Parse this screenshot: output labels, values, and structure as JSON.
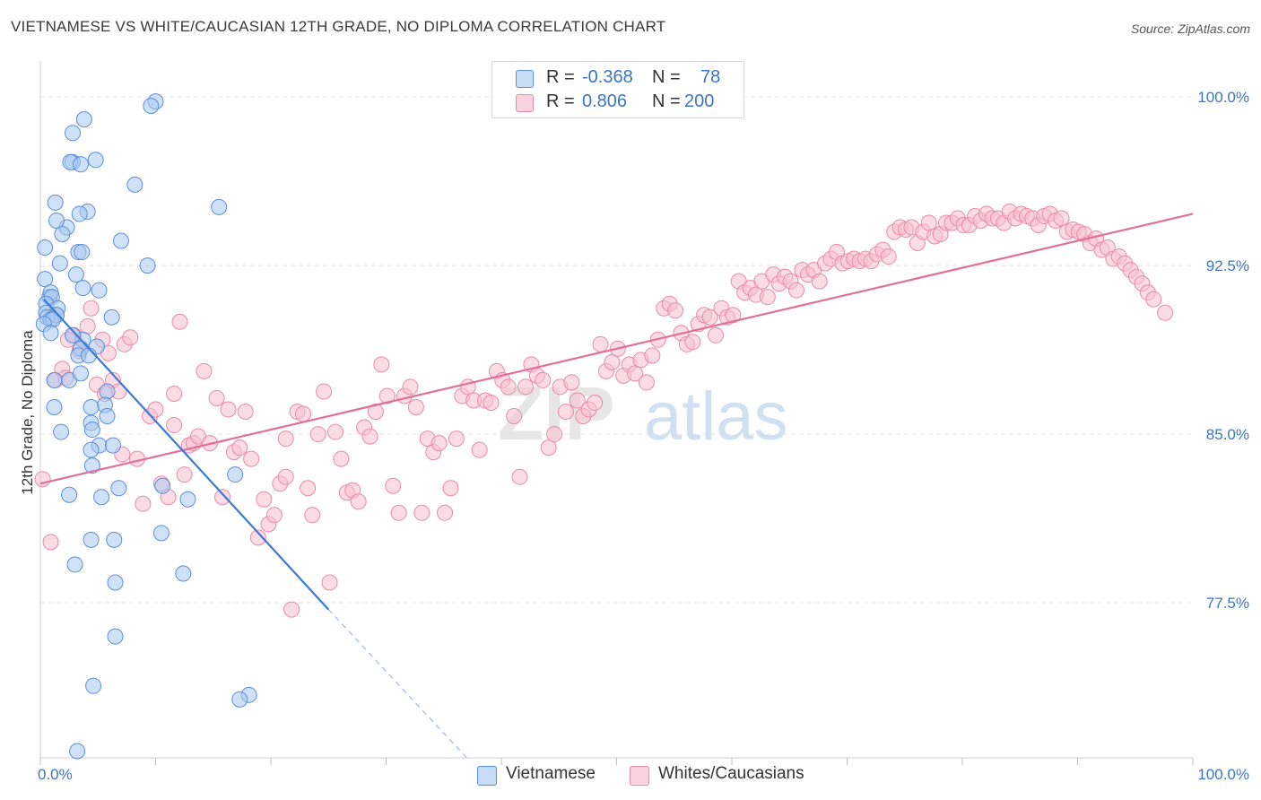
{
  "title": "VIETNAMESE VS WHITE/CAUCASIAN 12TH GRADE, NO DIPLOMA CORRELATION CHART",
  "source": "Source: ZipAtlas.com",
  "watermark": {
    "zip": "ZIP",
    "atlas": "atlas"
  },
  "legend": {
    "rows": [
      {
        "r_label": "R =",
        "r_value": "-0.368",
        "n_label": "N =",
        "n_value": "78"
      },
      {
        "r_label": "R =",
        "r_value": "0.806",
        "n_label": "N =",
        "n_value": "200"
      }
    ]
  },
  "bottom_legend": {
    "series1": "Vietnamese",
    "series2": "Whites/Caucasians"
  },
  "colors": {
    "blue_fill": "#a8c8f0",
    "blue_stroke": "#5b8fd6",
    "blue_line": "#3b78d8",
    "pink_fill": "#f7bfd0",
    "pink_stroke": "#e98aa8",
    "pink_line": "#e07099",
    "tick_label": "#3a75c4",
    "grid": "#e3e3e3"
  },
  "chart_data": {
    "type": "scatter",
    "title": "VIETNAMESE VS WHITE/CAUCASIAN 12TH GRADE, NO DIPLOMA CORRELATION CHART",
    "xlabel": "",
    "ylabel": "12th Grade, No Diploma",
    "xlim": [
      0,
      100
    ],
    "ylim": [
      70.6,
      101.6
    ],
    "x_tick_labels": [
      "0.0%",
      "100.0%"
    ],
    "y_ticks": [
      {
        "value": 77.5,
        "label": "77.5%"
      },
      {
        "value": 85.0,
        "label": "85.0%"
      },
      {
        "value": 92.5,
        "label": "92.5%"
      },
      {
        "value": 100.0,
        "label": "100.0%"
      }
    ],
    "grid": true,
    "legend_position": "top-center",
    "series": [
      {
        "name": "Vietnamese",
        "r": -0.368,
        "n": 78,
        "trend": {
          "x0": 0.3,
          "y0": 91.0,
          "x1": 25.0,
          "y1": 77.2,
          "dash_x1": 37.0,
          "dash_y1": 70.6
        },
        "points": [
          [
            10.0,
            99.8
          ],
          [
            9.6,
            99.6
          ],
          [
            3.8,
            99.0
          ],
          [
            2.8,
            98.4
          ],
          [
            4.8,
            97.2
          ],
          [
            2.8,
            97.1
          ],
          [
            2.6,
            97.1
          ],
          [
            3.5,
            97.0
          ],
          [
            8.2,
            96.1
          ],
          [
            1.3,
            95.3
          ],
          [
            4.1,
            94.9
          ],
          [
            3.4,
            94.8
          ],
          [
            15.5,
            95.1
          ],
          [
            2.3,
            94.2
          ],
          [
            1.4,
            94.5
          ],
          [
            1.9,
            93.9
          ],
          [
            7.0,
            93.6
          ],
          [
            0.4,
            93.3
          ],
          [
            3.3,
            93.1
          ],
          [
            3.6,
            93.1
          ],
          [
            1.7,
            92.6
          ],
          [
            9.3,
            92.5
          ],
          [
            3.1,
            92.1
          ],
          [
            0.4,
            91.9
          ],
          [
            3.7,
            91.5
          ],
          [
            5.1,
            91.4
          ],
          [
            0.8,
            91.1
          ],
          [
            0.9,
            91.3
          ],
          [
            1.0,
            91.1
          ],
          [
            0.5,
            90.8
          ],
          [
            1.5,
            90.6
          ],
          [
            0.5,
            90.4
          ],
          [
            1.4,
            90.3
          ],
          [
            1.4,
            90.3
          ],
          [
            6.2,
            90.2
          ],
          [
            0.6,
            90.2
          ],
          [
            0.9,
            90.1
          ],
          [
            1.1,
            90.1
          ],
          [
            0.3,
            89.9
          ],
          [
            3.7,
            89.2
          ],
          [
            2.8,
            89.4
          ],
          [
            0.9,
            89.5
          ],
          [
            3.5,
            88.8
          ],
          [
            4.9,
            88.9
          ],
          [
            3.3,
            88.5
          ],
          [
            4.2,
            88.5
          ],
          [
            2.5,
            87.4
          ],
          [
            1.2,
            87.4
          ],
          [
            3.5,
            87.7
          ],
          [
            5.8,
            86.9
          ],
          [
            5.6,
            86.3
          ],
          [
            4.4,
            86.2
          ],
          [
            1.2,
            86.2
          ],
          [
            5.8,
            85.8
          ],
          [
            4.4,
            85.5
          ],
          [
            4.5,
            85.2
          ],
          [
            1.8,
            85.1
          ],
          [
            5.1,
            84.5
          ],
          [
            6.3,
            84.5
          ],
          [
            4.4,
            84.3
          ],
          [
            4.5,
            83.6
          ],
          [
            16.9,
            83.2
          ],
          [
            10.6,
            82.7
          ],
          [
            6.8,
            82.6
          ],
          [
            2.5,
            82.3
          ],
          [
            5.3,
            82.2
          ],
          [
            12.8,
            82.1
          ],
          [
            10.5,
            80.6
          ],
          [
            4.4,
            80.3
          ],
          [
            6.4,
            80.3
          ],
          [
            3.0,
            79.2
          ],
          [
            12.4,
            78.8
          ],
          [
            6.5,
            78.4
          ],
          [
            6.5,
            76.0
          ],
          [
            4.6,
            73.8
          ],
          [
            18.1,
            73.4
          ],
          [
            17.3,
            73.2
          ],
          [
            3.2,
            70.9
          ]
        ]
      },
      {
        "name": "Whites/Caucasians",
        "r": 0.806,
        "n": 200,
        "trend": {
          "x0": 0.0,
          "y0": 82.8,
          "x1": 100.0,
          "y1": 94.8
        },
        "points": [
          [
            0.2,
            83.0
          ],
          [
            0.9,
            80.2
          ],
          [
            1.3,
            87.4
          ],
          [
            1.9,
            87.9
          ],
          [
            2.2,
            87.5
          ],
          [
            2.9,
            89.4
          ],
          [
            3.4,
            88.7
          ],
          [
            4.1,
            89.8
          ],
          [
            4.4,
            90.6
          ],
          [
            4.9,
            87.2
          ],
          [
            5.4,
            89.2
          ],
          [
            5.9,
            88.6
          ],
          [
            6.3,
            87.4
          ],
          [
            6.8,
            86.9
          ],
          [
            7.3,
            89.0
          ],
          [
            7.8,
            89.3
          ],
          [
            8.4,
            83.9
          ],
          [
            8.9,
            81.9
          ],
          [
            9.5,
            85.8
          ],
          [
            10.0,
            86.1
          ],
          [
            10.5,
            82.8
          ],
          [
            11.1,
            82.2
          ],
          [
            11.6,
            85.4
          ],
          [
            12.1,
            90.0
          ],
          [
            12.5,
            83.2
          ],
          [
            12.9,
            84.5
          ],
          [
            13.3,
            84.6
          ],
          [
            13.7,
            84.9
          ],
          [
            14.2,
            87.8
          ],
          [
            14.7,
            84.6
          ],
          [
            15.3,
            86.6
          ],
          [
            15.8,
            82.2
          ],
          [
            16.3,
            86.1
          ],
          [
            16.8,
            84.2
          ],
          [
            17.3,
            84.4
          ],
          [
            17.8,
            86.0
          ],
          [
            18.3,
            83.9
          ],
          [
            18.9,
            80.4
          ],
          [
            19.4,
            82.1
          ],
          [
            19.8,
            81.0
          ],
          [
            20.3,
            81.4
          ],
          [
            20.8,
            82.8
          ],
          [
            21.3,
            84.8
          ],
          [
            21.8,
            77.2
          ],
          [
            22.3,
            86.0
          ],
          [
            22.8,
            85.9
          ],
          [
            23.2,
            82.6
          ],
          [
            23.6,
            81.4
          ],
          [
            24.1,
            85.0
          ],
          [
            24.6,
            86.9
          ],
          [
            25.1,
            78.4
          ],
          [
            25.6,
            85.1
          ],
          [
            26.1,
            83.9
          ],
          [
            26.6,
            82.4
          ],
          [
            27.1,
            82.5
          ],
          [
            27.6,
            82.0
          ],
          [
            28.1,
            85.3
          ],
          [
            28.6,
            84.9
          ],
          [
            29.1,
            86.0
          ],
          [
            29.6,
            88.1
          ],
          [
            30.1,
            86.7
          ],
          [
            30.6,
            82.7
          ],
          [
            31.1,
            81.5
          ],
          [
            31.6,
            86.7
          ],
          [
            32.1,
            87.1
          ],
          [
            32.6,
            86.2
          ],
          [
            33.1,
            81.5
          ],
          [
            33.6,
            84.8
          ],
          [
            34.1,
            84.2
          ],
          [
            34.6,
            84.6
          ],
          [
            35.1,
            81.5
          ],
          [
            35.6,
            82.6
          ],
          [
            36.1,
            84.8
          ],
          [
            36.6,
            86.7
          ],
          [
            37.1,
            87.1
          ],
          [
            37.6,
            86.5
          ],
          [
            38.1,
            84.3
          ],
          [
            38.6,
            86.5
          ],
          [
            39.1,
            86.4
          ],
          [
            39.6,
            87.8
          ],
          [
            40.1,
            87.4
          ],
          [
            40.6,
            87.1
          ],
          [
            41.1,
            85.8
          ],
          [
            41.6,
            83.1
          ],
          [
            42.1,
            87.1
          ],
          [
            42.6,
            88.1
          ],
          [
            43.1,
            87.6
          ],
          [
            43.6,
            87.4
          ],
          [
            44.1,
            84.4
          ],
          [
            44.6,
            85.0
          ],
          [
            45.1,
            87.1
          ],
          [
            45.6,
            86.0
          ],
          [
            46.1,
            87.3
          ],
          [
            46.6,
            86.5
          ],
          [
            47.1,
            85.8
          ],
          [
            47.6,
            86.1
          ],
          [
            48.1,
            86.4
          ],
          [
            48.6,
            89.0
          ],
          [
            49.1,
            87.8
          ],
          [
            49.6,
            88.2
          ],
          [
            50.1,
            88.8
          ],
          [
            50.6,
            87.6
          ],
          [
            51.1,
            88.1
          ],
          [
            51.6,
            87.7
          ],
          [
            52.1,
            88.3
          ],
          [
            52.6,
            87.3
          ],
          [
            53.1,
            88.5
          ],
          [
            53.6,
            89.2
          ],
          [
            54.1,
            90.6
          ],
          [
            54.6,
            90.8
          ],
          [
            55.1,
            90.5
          ],
          [
            55.6,
            89.5
          ],
          [
            56.1,
            89.0
          ],
          [
            56.6,
            89.1
          ],
          [
            57.1,
            89.9
          ],
          [
            57.6,
            90.3
          ],
          [
            58.1,
            90.2
          ],
          [
            58.6,
            89.4
          ],
          [
            59.1,
            90.6
          ],
          [
            59.6,
            90.2
          ],
          [
            60.1,
            90.3
          ],
          [
            60.6,
            91.8
          ],
          [
            61.1,
            91.3
          ],
          [
            61.6,
            91.5
          ],
          [
            62.1,
            91.2
          ],
          [
            62.6,
            91.8
          ],
          [
            63.1,
            91.1
          ],
          [
            63.6,
            92.1
          ],
          [
            64.1,
            91.7
          ],
          [
            64.6,
            92.0
          ],
          [
            65.1,
            91.8
          ],
          [
            65.6,
            91.4
          ],
          [
            66.1,
            92.3
          ],
          [
            66.6,
            92.1
          ],
          [
            67.1,
            92.3
          ],
          [
            67.6,
            91.8
          ],
          [
            68.1,
            92.6
          ],
          [
            68.6,
            92.8
          ],
          [
            69.1,
            93.1
          ],
          [
            69.6,
            92.6
          ],
          [
            70.1,
            92.7
          ],
          [
            70.6,
            92.8
          ],
          [
            71.1,
            92.7
          ],
          [
            71.6,
            92.8
          ],
          [
            72.1,
            92.7
          ],
          [
            72.6,
            93.0
          ],
          [
            73.1,
            93.2
          ],
          [
            73.6,
            92.9
          ],
          [
            74.1,
            94.0
          ],
          [
            74.6,
            94.2
          ],
          [
            75.1,
            94.1
          ],
          [
            75.6,
            94.2
          ],
          [
            76.1,
            93.5
          ],
          [
            76.6,
            94.0
          ],
          [
            77.1,
            94.4
          ],
          [
            77.6,
            93.8
          ],
          [
            78.1,
            93.9
          ],
          [
            78.6,
            94.4
          ],
          [
            79.1,
            94.4
          ],
          [
            79.6,
            94.6
          ],
          [
            80.1,
            94.3
          ],
          [
            80.6,
            94.3
          ],
          [
            81.1,
            94.7
          ],
          [
            81.6,
            94.5
          ],
          [
            82.1,
            94.8
          ],
          [
            82.6,
            94.6
          ],
          [
            83.1,
            94.6
          ],
          [
            83.6,
            94.4
          ],
          [
            84.1,
            94.9
          ],
          [
            84.6,
            94.6
          ],
          [
            85.1,
            94.8
          ],
          [
            85.6,
            94.7
          ],
          [
            86.1,
            94.6
          ],
          [
            86.6,
            94.3
          ],
          [
            87.1,
            94.7
          ],
          [
            87.6,
            94.8
          ],
          [
            88.1,
            94.5
          ],
          [
            88.6,
            94.6
          ],
          [
            89.1,
            94.0
          ],
          [
            89.6,
            94.1
          ],
          [
            90.1,
            94.0
          ],
          [
            90.6,
            93.9
          ],
          [
            91.1,
            93.5
          ],
          [
            91.6,
            93.7
          ],
          [
            92.1,
            93.2
          ],
          [
            92.6,
            93.3
          ],
          [
            93.1,
            92.8
          ],
          [
            93.6,
            92.9
          ],
          [
            94.1,
            92.6
          ],
          [
            94.6,
            92.3
          ],
          [
            95.1,
            92.0
          ],
          [
            95.6,
            91.7
          ],
          [
            96.1,
            91.3
          ],
          [
            96.6,
            91.0
          ],
          [
            97.6,
            90.4
          ],
          [
            21.3,
            83.1
          ],
          [
            11.6,
            86.8
          ],
          [
            5.6,
            86.8
          ],
          [
            7.1,
            84.1
          ],
          [
            2.4,
            89.2
          ]
        ]
      }
    ]
  }
}
